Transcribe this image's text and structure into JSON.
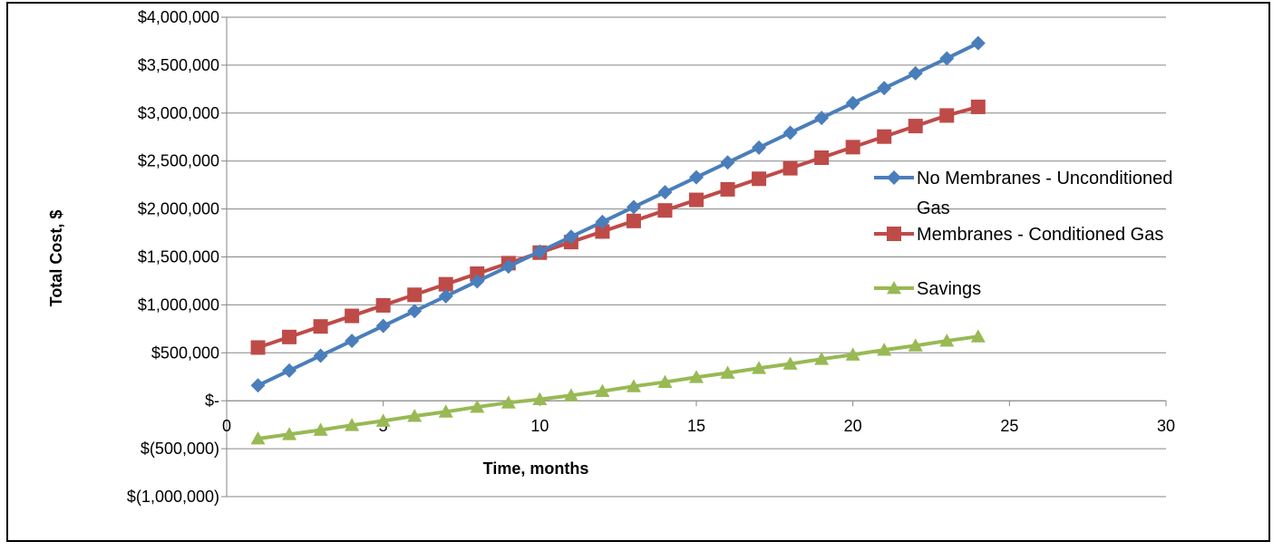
{
  "chart_data": {
    "type": "line",
    "xlabel": "Time, months",
    "ylabel": "Total Cost, $",
    "xlim": [
      0,
      30
    ],
    "ylim": [
      -1000000,
      4000000
    ],
    "x_ticks": [
      0,
      5,
      10,
      15,
      20,
      25,
      30
    ],
    "y_ticks": [
      -1000000,
      -500000,
      0,
      500000,
      1000000,
      1500000,
      2000000,
      2500000,
      3000000,
      3500000,
      4000000
    ],
    "y_tick_labels": [
      "$(1,000,000)",
      "$(500,000)",
      "$-",
      "$500,000",
      "$1,000,000",
      "$1,500,000",
      "$2,000,000",
      "$2,500,000",
      "$3,000,000",
      "$3,500,000",
      "$4,000,000"
    ],
    "grid": "horizontal",
    "legend_position": "right",
    "x": [
      1,
      2,
      3,
      4,
      5,
      6,
      7,
      8,
      9,
      10,
      11,
      12,
      13,
      14,
      15,
      16,
      17,
      18,
      19,
      20,
      21,
      22,
      23,
      24
    ],
    "series": [
      {
        "name": "No Membranes - Unconditioned Gas",
        "legend_lines": [
          "No Membranes - Unconditioned",
          "Gas"
        ],
        "color": "#4a7ebb",
        "marker": "diamond",
        "values": [
          160000,
          315000,
          470000,
          625000,
          780000,
          935000,
          1090000,
          1245000,
          1400000,
          1555000,
          1710000,
          1865000,
          2020000,
          2175000,
          2330000,
          2485000,
          2640000,
          2795000,
          2950000,
          3105000,
          3260000,
          3415000,
          3570000,
          3730000
        ]
      },
      {
        "name": "Membranes - Conditioned Gas",
        "legend_lines": [
          "Membranes - Conditioned Gas"
        ],
        "color": "#be4b48",
        "marker": "square",
        "values": [
          555000,
          665000,
          775000,
          885000,
          995000,
          1105000,
          1215000,
          1325000,
          1435000,
          1545000,
          1655000,
          1765000,
          1875000,
          1985000,
          2095000,
          2205000,
          2315000,
          2425000,
          2535000,
          2645000,
          2755000,
          2865000,
          2975000,
          3065000
        ]
      },
      {
        "name": "Savings",
        "legend_lines": [
          "Savings"
        ],
        "color": "#98b954",
        "marker": "triangle",
        "values": [
          -395000,
          -350000,
          -305000,
          -255000,
          -210000,
          -160000,
          -115000,
          -65000,
          -20000,
          15000,
          55000,
          100000,
          150000,
          195000,
          245000,
          290000,
          340000,
          385000,
          435000,
          480000,
          530000,
          575000,
          625000,
          670000
        ]
      }
    ]
  }
}
